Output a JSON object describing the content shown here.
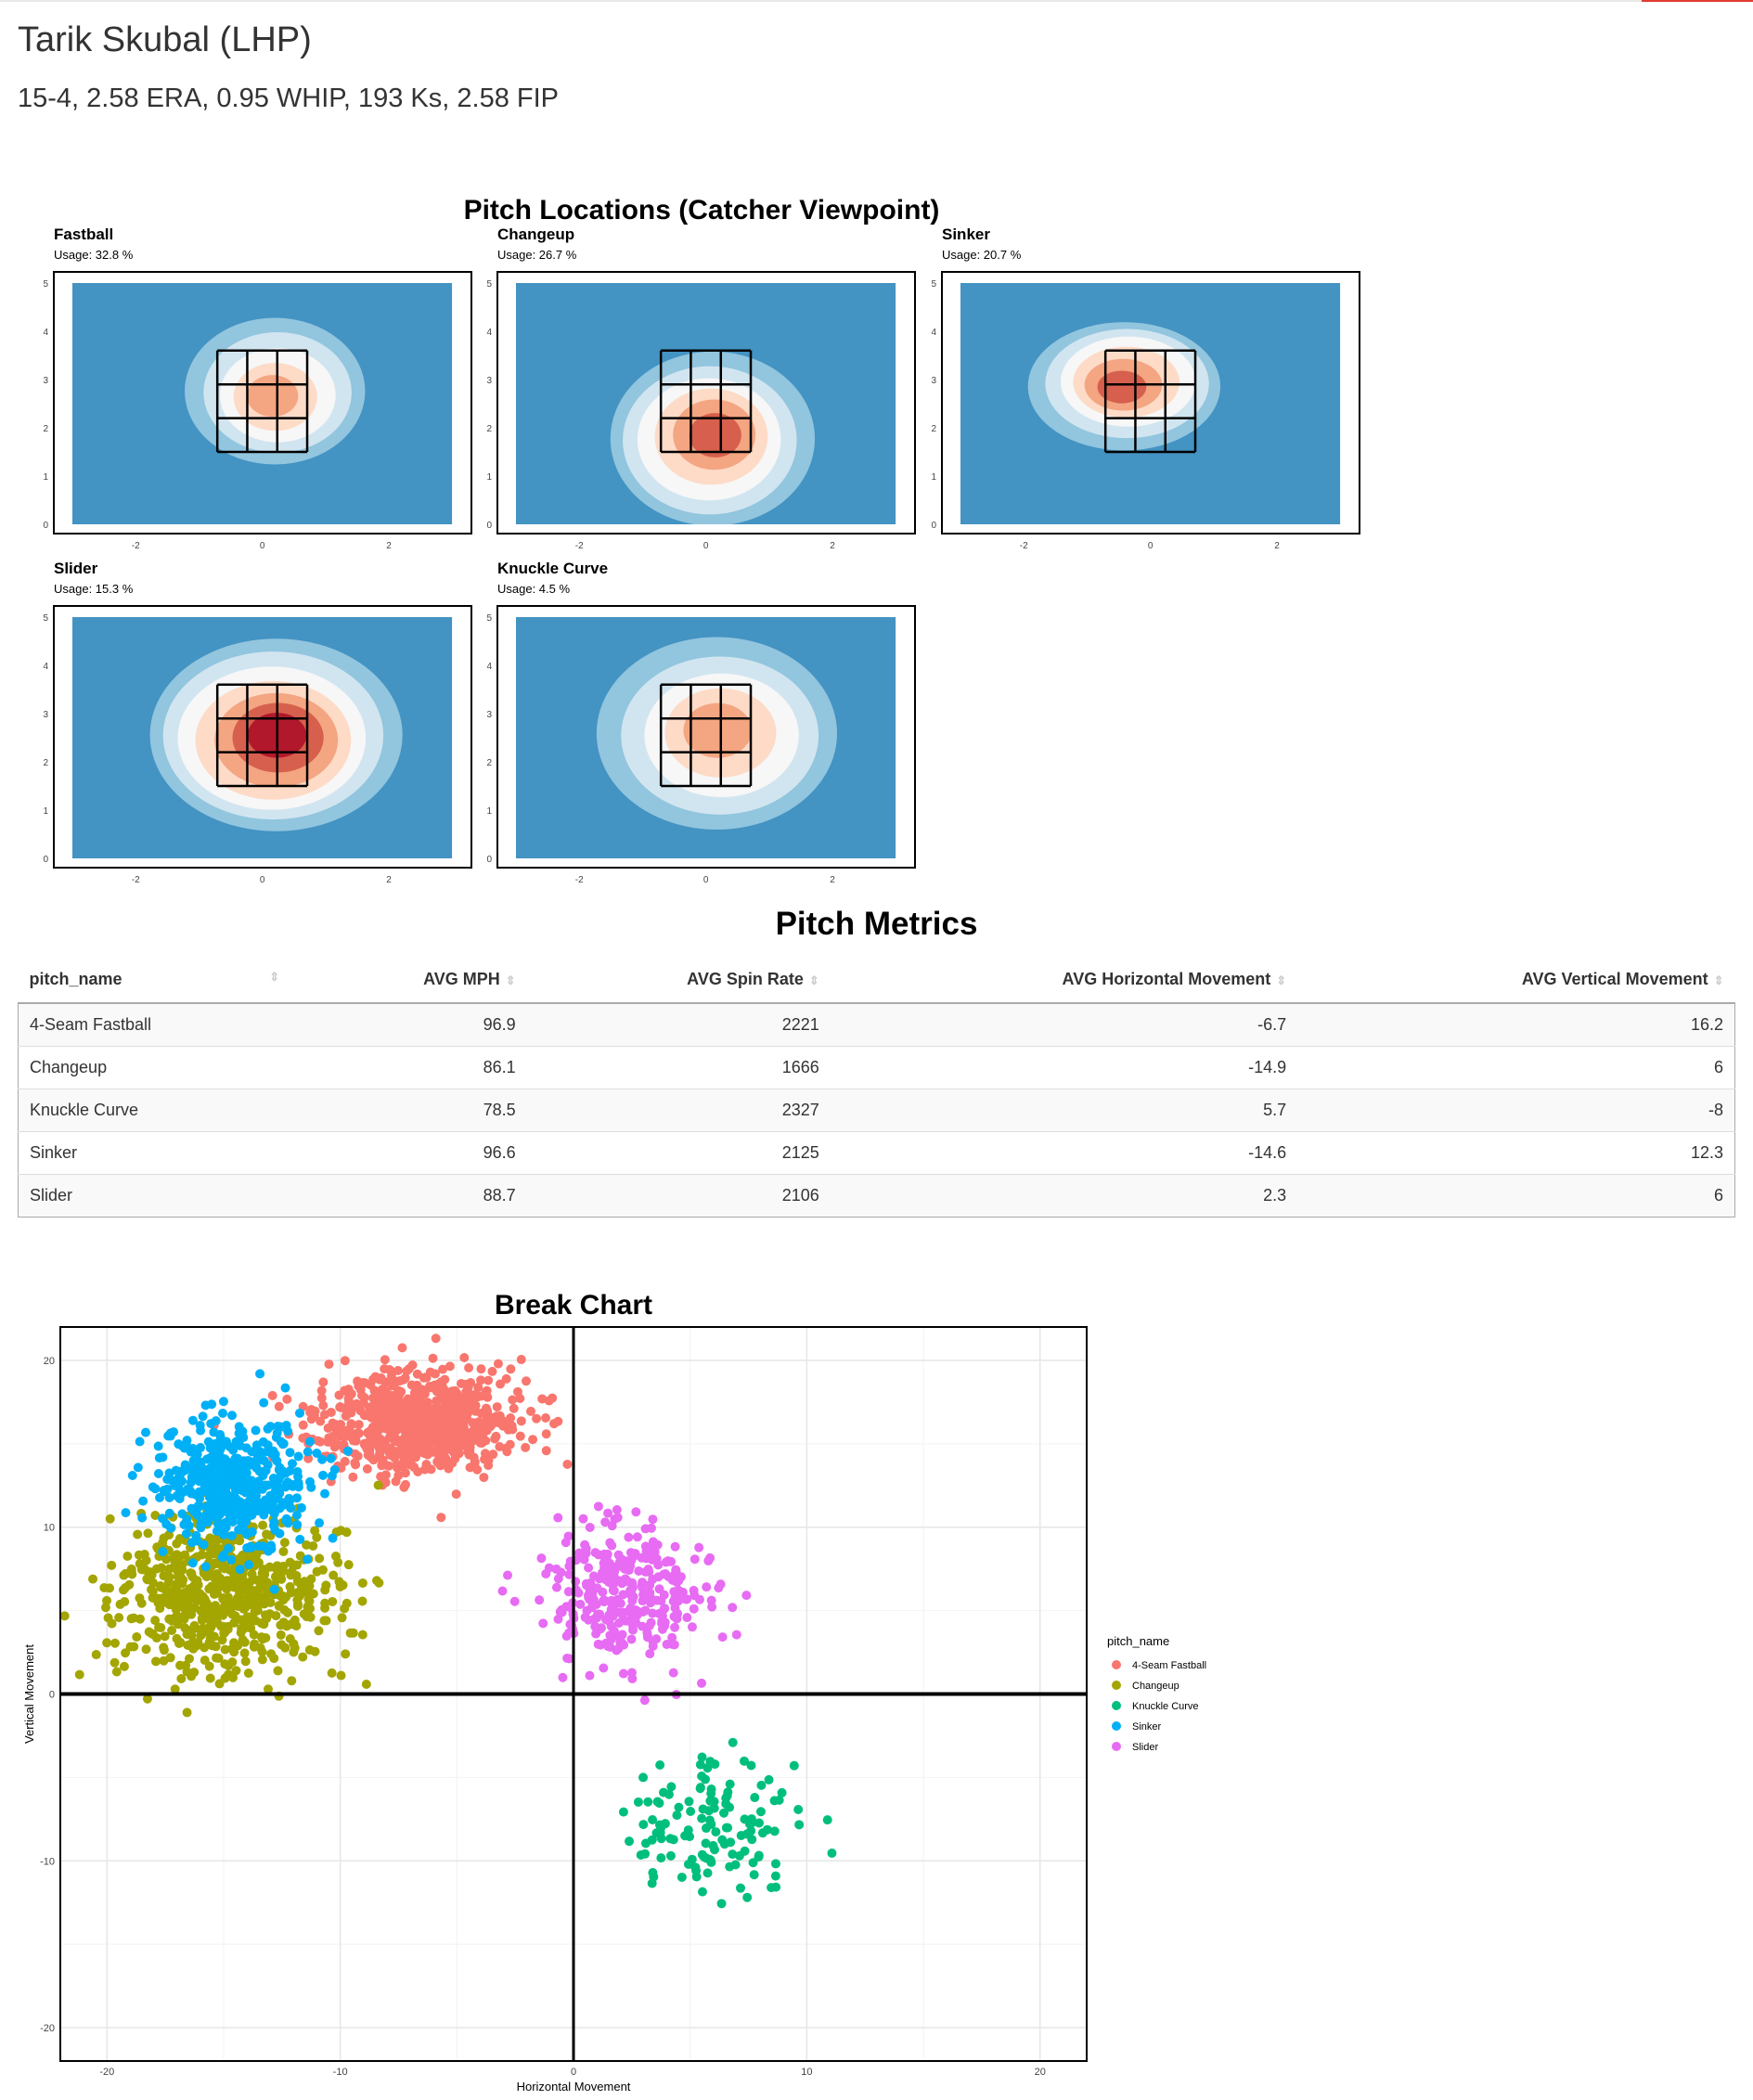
{
  "header": {
    "title": "Tarik Skubal (LHP)",
    "subtitle": "15-4, 2.58 ERA, 0.95 WHIP, 193 Ks, 2.58 FIP"
  },
  "colors": {
    "zone_bg": "#4393c3",
    "contours": [
      "#92c5de",
      "#d1e5f0",
      "#f7f7f7",
      "#fddbc7",
      "#f4a582",
      "#d6604d",
      "#b2182b"
    ]
  },
  "locations": {
    "title": "Pitch Locations (Catcher Viewpoint)",
    "x_ticks": [
      "-2",
      "0",
      "2"
    ],
    "y_ticks": [
      "0",
      "1",
      "2",
      "3",
      "4",
      "5"
    ],
    "panels": [
      {
        "name": "Fastball",
        "usage": "Usage: 32.8 %",
        "peak": [
          0.2,
          2.7
        ],
        "spread": [
          0.75,
          0.8
        ],
        "intensity": 5
      },
      {
        "name": "Changeup",
        "usage": "Usage: 26.7 %",
        "peak": [
          0.1,
          1.8
        ],
        "spread": [
          0.85,
          0.95
        ],
        "intensity": 6
      },
      {
        "name": "Sinker",
        "usage": "Usage: 20.7 %",
        "peak": [
          -0.4,
          2.9
        ],
        "spread": [
          0.8,
          0.7
        ],
        "intensity": 6
      },
      {
        "name": "Slider",
        "usage": "Usage: 15.3 %",
        "peak": [
          0.2,
          2.5
        ],
        "spread": [
          1.05,
          1.05
        ],
        "intensity": 7
      },
      {
        "name": "Knuckle Curve",
        "usage": "Usage: 4.5 %",
        "peak": [
          0.2,
          2.6
        ],
        "spread": [
          1.0,
          1.05
        ],
        "intensity": 5
      }
    ]
  },
  "metrics": {
    "title": "Pitch Metrics",
    "columns": [
      "pitch_name",
      "AVG MPH",
      "AVG Spin Rate",
      "AVG Horizontal Movement",
      "AVG Vertical Movement"
    ],
    "rows": [
      [
        "4-Seam Fastball",
        "96.9",
        "2221",
        "-6.7",
        "16.2"
      ],
      [
        "Changeup",
        "86.1",
        "1666",
        "-14.9",
        "6"
      ],
      [
        "Knuckle Curve",
        "78.5",
        "2327",
        "5.7",
        "-8"
      ],
      [
        "Sinker",
        "96.6",
        "2125",
        "-14.6",
        "12.3"
      ],
      [
        "Slider",
        "88.7",
        "2106",
        "2.3",
        "6"
      ]
    ]
  },
  "chart_data": {
    "type": "scatter",
    "title": "Break Chart",
    "xlabel": "Horizontal Movement",
    "ylabel": "Vertical Movement",
    "xlim": [
      -22,
      22
    ],
    "ylim": [
      -22,
      22
    ],
    "x_ticks": [
      "-20",
      "-10",
      "0",
      "10",
      "20"
    ],
    "y_ticks": [
      "-20",
      "-10",
      "0",
      "10",
      "20"
    ],
    "grid": true,
    "legend_position": "right",
    "legend_title": "pitch_name",
    "series": [
      {
        "name": "4-Seam Fastball",
        "color": "#F8766D",
        "mean": [
          -6.7,
          16.2
        ],
        "sd": [
          2.2,
          1.5
        ],
        "n": 800
      },
      {
        "name": "Changeup",
        "color": "#A3A500",
        "mean": [
          -14.9,
          6
        ],
        "sd": [
          2.3,
          2.4
        ],
        "n": 650
      },
      {
        "name": "Knuckle Curve",
        "color": "#00BF7D",
        "mean": [
          5.7,
          -8
        ],
        "sd": [
          2.2,
          2.0
        ],
        "n": 130
      },
      {
        "name": "Sinker",
        "color": "#00B0F6",
        "mean": [
          -14.6,
          12.3
        ],
        "sd": [
          1.7,
          1.9
        ],
        "n": 500
      },
      {
        "name": "Slider",
        "color": "#E76BF3",
        "mean": [
          2.3,
          6
        ],
        "sd": [
          1.8,
          2.0
        ],
        "n": 320
      }
    ]
  }
}
